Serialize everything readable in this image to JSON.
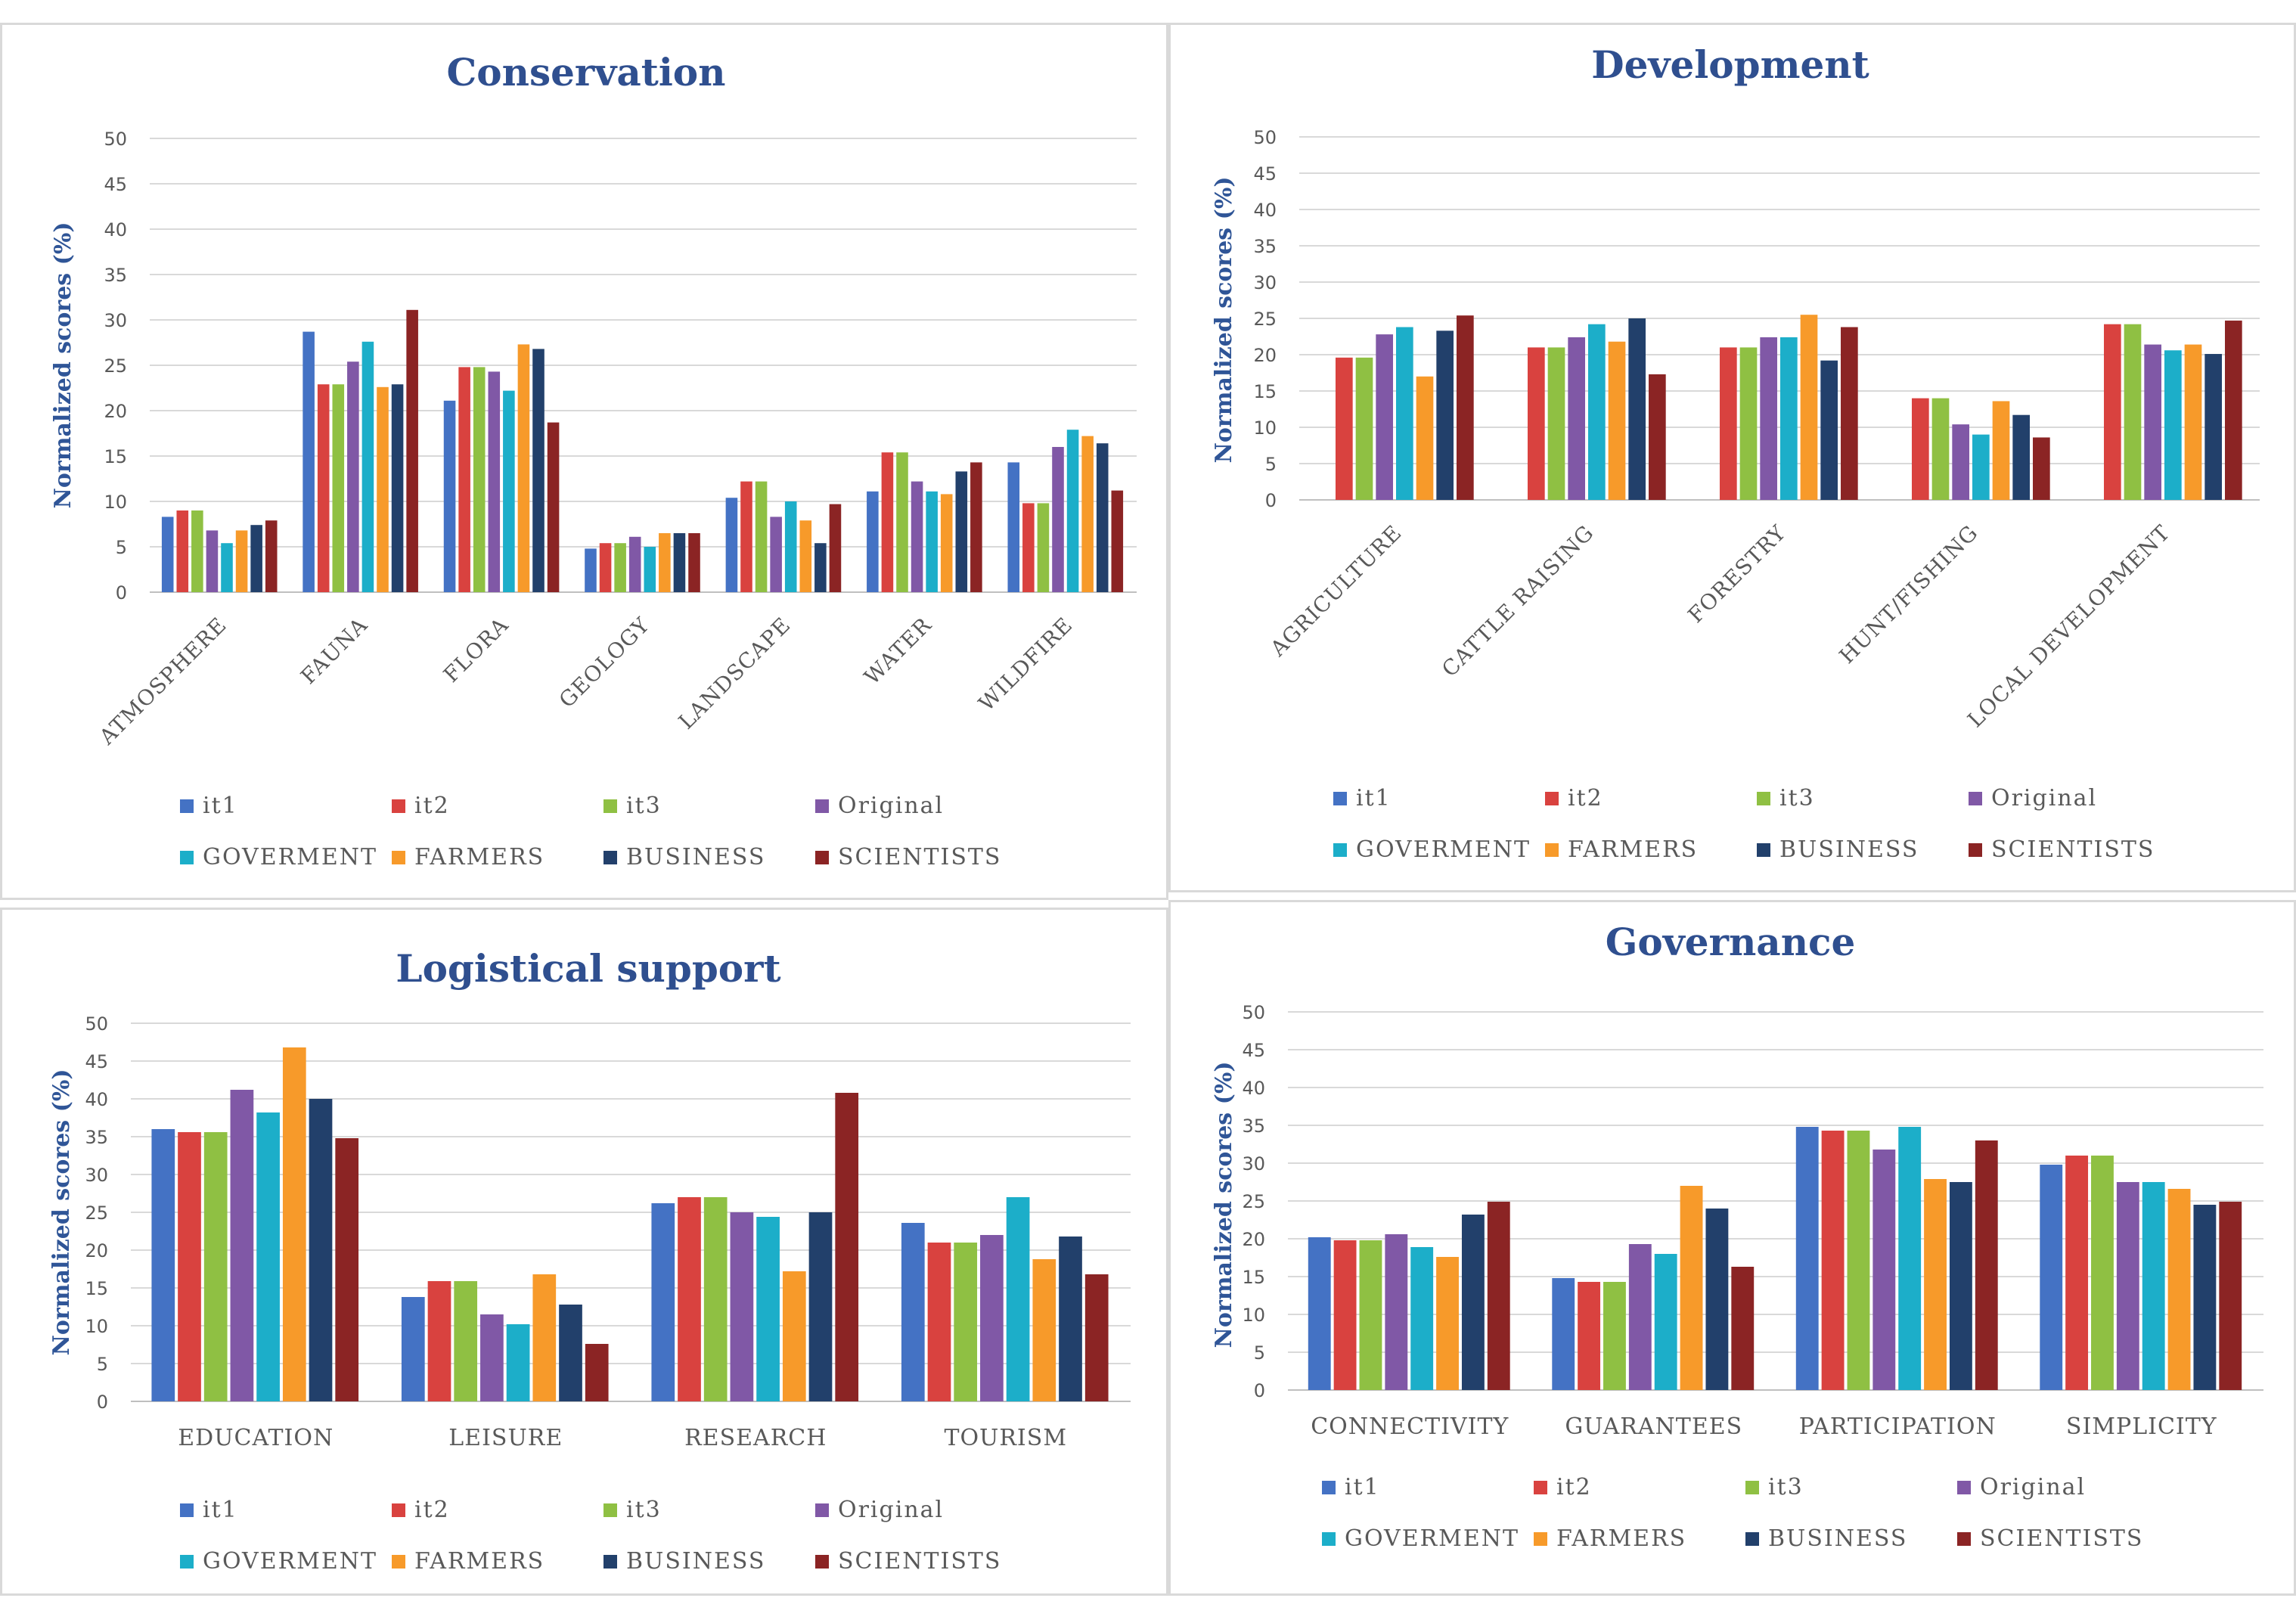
{
  "colors": {
    "it1": "#4472c4",
    "it2": "#d9423f",
    "it3": "#8fc043",
    "Original": "#8058a6",
    "GOVERMENT": "#1caec9",
    "FARMERS": "#f79a2a",
    "BUSINESS": "#22406b",
    "SCIENTISTS": "#8b2424",
    "title": "#2f4f8f",
    "grid": "#d9d9d9"
  },
  "legend_order": [
    "it1",
    "it2",
    "it3",
    "Original",
    "GOVERMENT",
    "FARMERS",
    "BUSINESS",
    "SCIENTISTS"
  ],
  "chart_data": [
    {
      "id": "conservation",
      "type": "bar",
      "title": "Conservation",
      "ylabel": "Normalized scores (%)",
      "xlabel": "",
      "ylim": [
        0,
        50
      ],
      "yticks": [
        0,
        5,
        10,
        15,
        20,
        25,
        30,
        35,
        40,
        45,
        50
      ],
      "grid": true,
      "legend_position": "bottom",
      "rotate_categories": true,
      "categories": [
        "ATMOSPHERE",
        "FAUNA",
        "FLORA",
        "GEOLOGY",
        "LANDSCAPE",
        "WATER",
        "WILDFIRE"
      ],
      "series": [
        {
          "name": "it1",
          "values": [
            8.3,
            28.7,
            21.1,
            4.8,
            10.4,
            11.1,
            14.3
          ]
        },
        {
          "name": "it2",
          "values": [
            9.0,
            22.9,
            24.8,
            5.4,
            12.2,
            15.4,
            9.8
          ]
        },
        {
          "name": "it3",
          "values": [
            9.0,
            22.9,
            24.8,
            5.4,
            12.2,
            15.4,
            9.8
          ]
        },
        {
          "name": "Original",
          "values": [
            6.8,
            25.4,
            24.3,
            6.1,
            8.3,
            12.2,
            16.0
          ]
        },
        {
          "name": "GOVERMENT",
          "values": [
            5.4,
            27.6,
            22.2,
            5.0,
            10.0,
            11.1,
            17.9
          ]
        },
        {
          "name": "FARMERS",
          "values": [
            6.8,
            22.6,
            27.3,
            6.5,
            7.9,
            10.8,
            17.2
          ]
        },
        {
          "name": "BUSINESS",
          "values": [
            7.4,
            22.9,
            26.8,
            6.5,
            5.4,
            13.3,
            16.4
          ]
        },
        {
          "name": "SCIENTISTS",
          "values": [
            7.9,
            31.1,
            18.7,
            6.5,
            9.7,
            14.3,
            11.2
          ]
        }
      ]
    },
    {
      "id": "development",
      "type": "bar",
      "title": "Development",
      "ylabel": "Normalized scores (%)",
      "xlabel": "",
      "ylim": [
        0,
        50
      ],
      "yticks": [
        0,
        5,
        10,
        15,
        20,
        25,
        30,
        35,
        40,
        45,
        50
      ],
      "grid": true,
      "legend_position": "bottom",
      "rotate_categories": true,
      "categories": [
        "AGRICULTURE",
        "CATTLE RAISING",
        "FORESTRY",
        "HUNT/FISHING",
        "LOCAL DEVELOPMENT"
      ],
      "series": [
        {
          "name": "it1",
          "values": [
            0,
            0,
            0,
            0,
            0
          ]
        },
        {
          "name": "it2",
          "values": [
            19.6,
            21.0,
            21.0,
            14.0,
            24.2
          ]
        },
        {
          "name": "it3",
          "values": [
            19.6,
            21.0,
            21.0,
            14.0,
            24.2
          ]
        },
        {
          "name": "Original",
          "values": [
            22.8,
            22.4,
            22.4,
            10.4,
            21.4
          ]
        },
        {
          "name": "GOVERMENT",
          "values": [
            23.8,
            24.2,
            22.4,
            9.0,
            20.6
          ]
        },
        {
          "name": "FARMERS",
          "values": [
            17.0,
            21.8,
            25.5,
            13.6,
            21.4
          ]
        },
        {
          "name": "BUSINESS",
          "values": [
            23.3,
            25.0,
            19.2,
            11.7,
            20.1
          ]
        },
        {
          "name": "SCIENTISTS",
          "values": [
            25.4,
            17.3,
            23.8,
            8.6,
            24.7
          ]
        }
      ]
    },
    {
      "id": "logistical",
      "type": "bar",
      "title": "Logistical support",
      "ylabel": "Normalized scores (%)",
      "xlabel": "",
      "ylim": [
        0,
        50
      ],
      "yticks": [
        0,
        5,
        10,
        15,
        20,
        25,
        30,
        35,
        40,
        45,
        50
      ],
      "grid": true,
      "legend_position": "bottom",
      "rotate_categories": false,
      "categories": [
        "EDUCATION",
        "LEISURE",
        "RESEARCH",
        "TOURISM"
      ],
      "series": [
        {
          "name": "it1",
          "values": [
            36.0,
            13.8,
            26.2,
            23.6
          ]
        },
        {
          "name": "it2",
          "values": [
            35.6,
            15.9,
            27.0,
            21.0
          ]
        },
        {
          "name": "it3",
          "values": [
            35.6,
            15.9,
            27.0,
            21.0
          ]
        },
        {
          "name": "Original",
          "values": [
            41.2,
            11.5,
            25.0,
            22.0
          ]
        },
        {
          "name": "GOVERMENT",
          "values": [
            38.2,
            10.2,
            24.4,
            27.0
          ]
        },
        {
          "name": "FARMERS",
          "values": [
            46.8,
            16.8,
            17.2,
            18.8
          ]
        },
        {
          "name": "BUSINESS",
          "values": [
            40.0,
            12.8,
            25.0,
            21.8
          ]
        },
        {
          "name": "SCIENTISTS",
          "values": [
            34.8,
            7.6,
            40.8,
            16.8
          ]
        }
      ]
    },
    {
      "id": "governance",
      "type": "bar",
      "title": "Governance",
      "ylabel": "Normalized scores (%)",
      "xlabel": "",
      "ylim": [
        0,
        50
      ],
      "yticks": [
        0,
        5,
        10,
        15,
        20,
        25,
        30,
        35,
        40,
        45,
        50
      ],
      "grid": true,
      "legend_position": "bottom",
      "rotate_categories": false,
      "categories": [
        "CONNECTIVITY",
        "GUARANTEES",
        "PARTICIPATION",
        "SIMPLICITY"
      ],
      "series": [
        {
          "name": "it1",
          "values": [
            20.2,
            14.8,
            34.8,
            29.8
          ]
        },
        {
          "name": "it2",
          "values": [
            19.8,
            14.3,
            34.3,
            31.0
          ]
        },
        {
          "name": "it3",
          "values": [
            19.8,
            14.3,
            34.3,
            31.0
          ]
        },
        {
          "name": "Original",
          "values": [
            20.6,
            19.3,
            31.8,
            27.5
          ]
        },
        {
          "name": "GOVERMENT",
          "values": [
            18.9,
            18.0,
            34.8,
            27.5
          ]
        },
        {
          "name": "FARMERS",
          "values": [
            17.6,
            27.0,
            27.9,
            26.6
          ]
        },
        {
          "name": "BUSINESS",
          "values": [
            23.2,
            24.0,
            27.5,
            24.5
          ]
        },
        {
          "name": "SCIENTISTS",
          "values": [
            24.9,
            16.3,
            33.0,
            24.9
          ]
        }
      ]
    }
  ]
}
